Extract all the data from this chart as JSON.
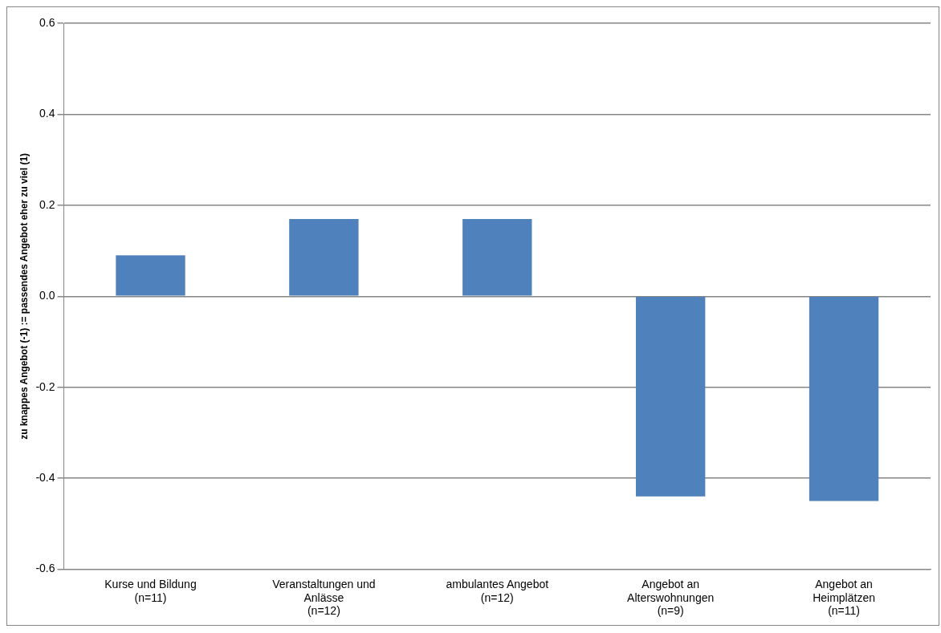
{
  "chart_data": {
    "type": "bar",
    "ylabel": "zu knappes Angebot (-1) := passendes Angebot eher zu viel (1)",
    "categories": [
      "Kurse und Bildung\n(n=11)",
      "Veranstaltungen und\nAnlässe\n(n=12)",
      "ambulantes Angebot\n(n=12)",
      "Angebot an\nAlterswohnungen\n(n=9)",
      "Angebot an\nHeimplätzen\n(n=11)"
    ],
    "values": [
      0.09,
      0.17,
      0.17,
      -0.44,
      -0.45
    ],
    "color": "#4f81bd",
    "ylim": [
      -0.6,
      0.6
    ],
    "yticks": [
      {
        "value": -0.6,
        "label": "-0.6"
      },
      {
        "value": -0.4,
        "label": "-0.4"
      },
      {
        "value": -0.2,
        "label": "-0.2"
      },
      {
        "value": 0,
        "label": "0.0"
      },
      {
        "value": 0.2,
        "label": "0.2"
      },
      {
        "value": 0.4,
        "label": "0.4"
      },
      {
        "value": 0.6,
        "label": "0.6"
      }
    ],
    "grid": "y",
    "legend": false
  }
}
